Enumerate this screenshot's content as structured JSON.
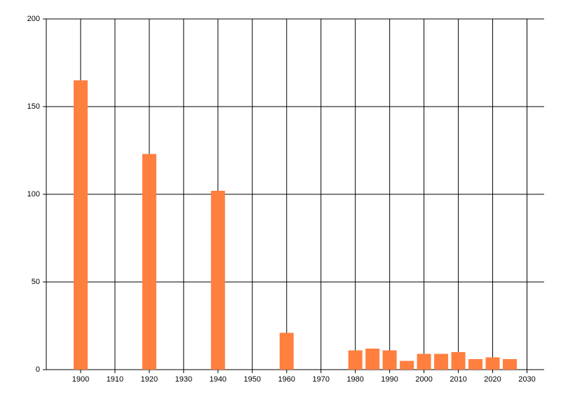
{
  "chart_data": {
    "type": "bar",
    "x": [
      1900,
      1920,
      1940,
      1960,
      1980,
      1985,
      1990,
      1995,
      2000,
      2005,
      2010,
      2015,
      2020,
      2025
    ],
    "values": [
      165,
      123,
      102,
      21,
      11,
      12,
      11,
      5,
      9,
      9,
      10,
      6,
      7,
      6
    ],
    "color": "#ff7f3f",
    "xlim": [
      1890,
      2035
    ],
    "xticks": [
      1900,
      1910,
      1920,
      1930,
      1940,
      1950,
      1960,
      1970,
      1980,
      1990,
      2000,
      2010,
      2020,
      2030
    ],
    "ylim": [
      0,
      200
    ],
    "yticks": [
      0,
      50,
      100,
      150,
      200
    ],
    "grid": true
  }
}
